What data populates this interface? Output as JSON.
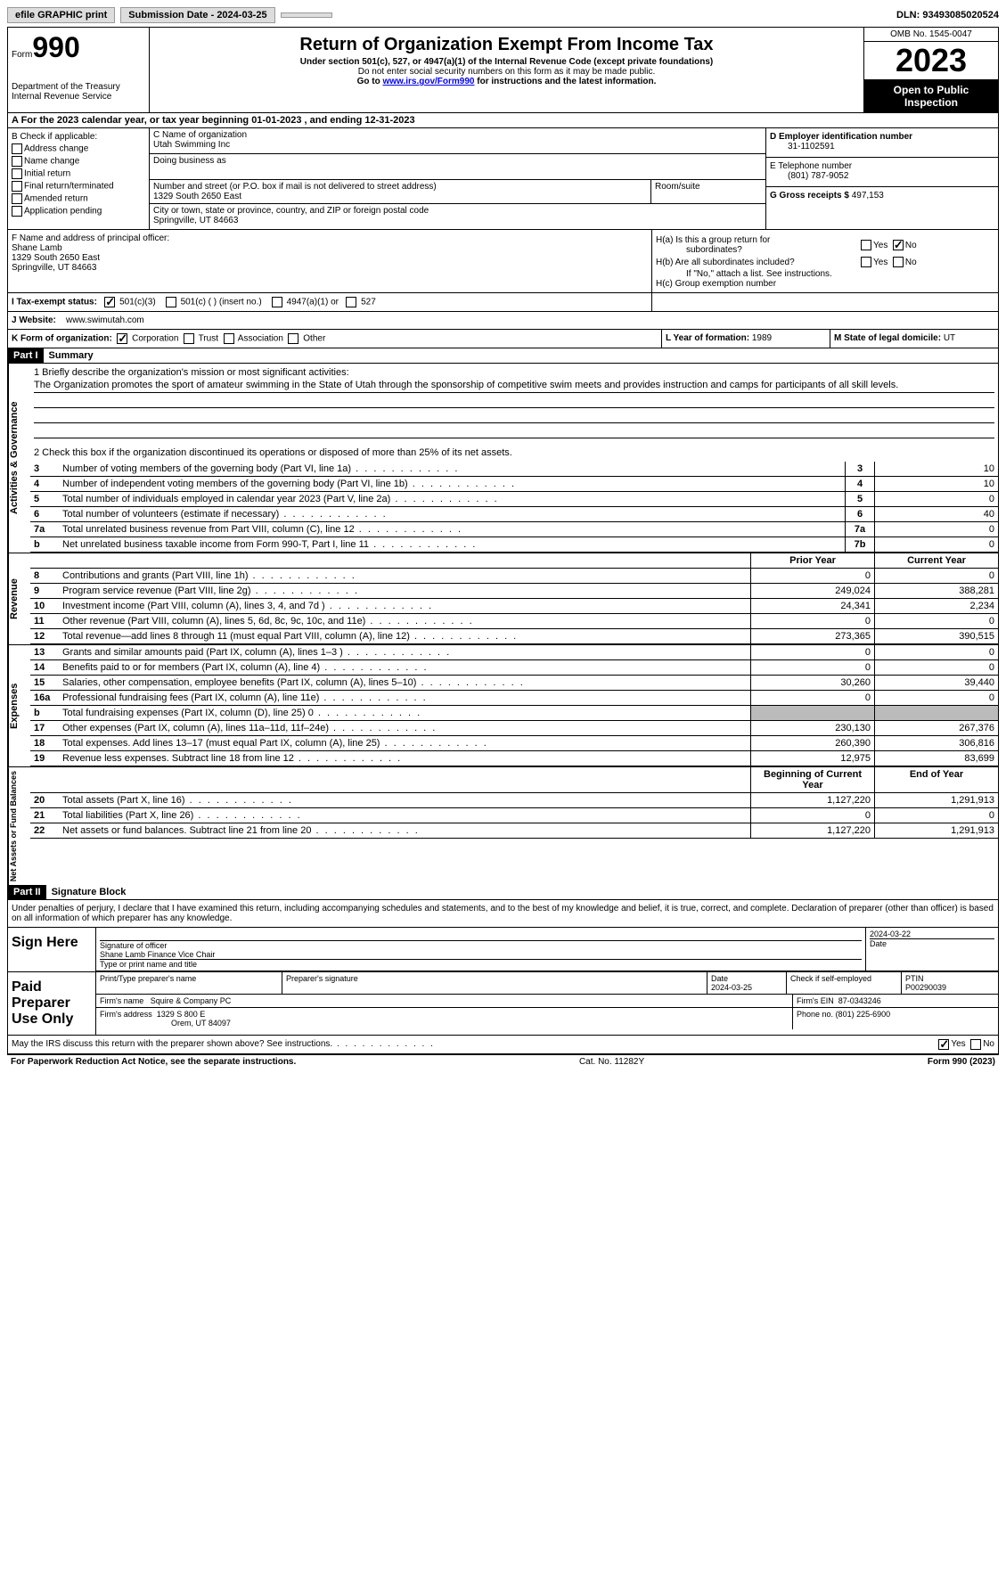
{
  "topbar": {
    "efile": "efile GRAPHIC print",
    "submission": "Submission Date - 2024-03-25",
    "dln": "DLN: 93493085020524"
  },
  "header": {
    "form_label": "Form",
    "form_num": "990",
    "dept": "Department of the Treasury Internal Revenue Service",
    "title": "Return of Organization Exempt From Income Tax",
    "sub1": "Under section 501(c), 527, or 4947(a)(1) of the Internal Revenue Code (except private foundations)",
    "sub2": "Do not enter social security numbers on this form as it may be made public.",
    "sub3_pre": "Go to ",
    "sub3_link": "www.irs.gov/Form990",
    "sub3_post": " for instructions and the latest information.",
    "omb": "OMB No. 1545-0047",
    "year": "2023",
    "inspect": "Open to Public Inspection"
  },
  "rowA": "A   For the 2023 calendar year, or tax year beginning 01-01-2023    , and ending 12-31-2023",
  "sectionB": {
    "label": "B Check if applicable:",
    "items": [
      "Address change",
      "Name change",
      "Initial return",
      "Final return/terminated",
      "Amended return",
      "Application pending"
    ]
  },
  "sectionC": {
    "name_lbl": "C Name of organization",
    "name": "Utah Swimming Inc",
    "dba_lbl": "Doing business as",
    "dba": "",
    "street_lbl": "Number and street (or P.O. box if mail is not delivered to street address)",
    "street": "1329 South 2650 East",
    "room_lbl": "Room/suite",
    "city_lbl": "City or town, state or province, country, and ZIP or foreign postal code",
    "city": "Springville, UT  84663"
  },
  "sectionD": {
    "ein_lbl": "D Employer identification number",
    "ein": "31-1102591",
    "phone_lbl": "E Telephone number",
    "phone": "(801) 787-9052",
    "gross_lbl": "G Gross receipts $",
    "gross": "497,153"
  },
  "sectionF": {
    "lbl": "F  Name and address of principal officer:",
    "name": "Shane Lamb",
    "street": "1329 South 2650 East",
    "city": "Springville, UT  84663"
  },
  "sectionH": {
    "ha": "H(a)  Is this a group return for",
    "ha2": "subordinates?",
    "hb": "H(b)  Are all subordinates included?",
    "hb_note": "If \"No,\" attach a list. See instructions.",
    "hc": "H(c)  Group exemption number",
    "yes": "Yes",
    "no": "No"
  },
  "rowI": {
    "lbl": "I    Tax-exempt status:",
    "o1": "501(c)(3)",
    "o2": "501(c) (  ) (insert no.)",
    "o3": "4947(a)(1) or",
    "o4": "527"
  },
  "rowJ": {
    "lbl": "J    Website:",
    "val": "www.swimutah.com"
  },
  "rowK": {
    "lbl": "K Form of organization:",
    "o1": "Corporation",
    "o2": "Trust",
    "o3": "Association",
    "o4": "Other"
  },
  "rowL": {
    "lbl": "L Year of formation:",
    "val": "1989"
  },
  "rowM": {
    "lbl": "M State of legal domicile:",
    "val": "UT"
  },
  "part1": {
    "hdr": "Part I",
    "title": "Summary",
    "mission_lbl": "1    Briefly describe the organization's mission or most significant activities:",
    "mission": "The Organization promotes the sport of amateur swimming in the State of Utah through the sponsorship of competitive swim meets and provides instruction and camps for participants of all skill levels.",
    "line2": "2    Check this box        if the organization discontinued its operations or disposed of more than 25% of its net assets.",
    "vtab_ag": "Activities & Governance",
    "vtab_rev": "Revenue",
    "vtab_exp": "Expenses",
    "vtab_na": "Net Assets or Fund Balances",
    "prior_hdr": "Prior Year",
    "current_hdr": "Current Year",
    "begin_hdr": "Beginning of Current Year",
    "end_hdr": "End of Year",
    "lines_ag": [
      {
        "n": "3",
        "d": "Number of voting members of the governing body (Part VI, line 1a)",
        "box": "3",
        "v": "10"
      },
      {
        "n": "4",
        "d": "Number of independent voting members of the governing body (Part VI, line 1b)",
        "box": "4",
        "v": "10"
      },
      {
        "n": "5",
        "d": "Total number of individuals employed in calendar year 2023 (Part V, line 2a)",
        "box": "5",
        "v": "0"
      },
      {
        "n": "6",
        "d": "Total number of volunteers (estimate if necessary)",
        "box": "6",
        "v": "40"
      },
      {
        "n": "7a",
        "d": "Total unrelated business revenue from Part VIII, column (C), line 12",
        "box": "7a",
        "v": "0"
      },
      {
        "n": "b",
        "d": "Net unrelated business taxable income from Form 990-T, Part I, line 11",
        "box": "7b",
        "v": "0"
      }
    ],
    "lines_rev": [
      {
        "n": "8",
        "d": "Contributions and grants (Part VIII, line 1h)",
        "p": "0",
        "c": "0"
      },
      {
        "n": "9",
        "d": "Program service revenue (Part VIII, line 2g)",
        "p": "249,024",
        "c": "388,281"
      },
      {
        "n": "10",
        "d": "Investment income (Part VIII, column (A), lines 3, 4, and 7d )",
        "p": "24,341",
        "c": "2,234"
      },
      {
        "n": "11",
        "d": "Other revenue (Part VIII, column (A), lines 5, 6d, 8c, 9c, 10c, and 11e)",
        "p": "0",
        "c": "0"
      },
      {
        "n": "12",
        "d": "Total revenue—add lines 8 through 11 (must equal Part VIII, column (A), line 12)",
        "p": "273,365",
        "c": "390,515"
      }
    ],
    "lines_exp": [
      {
        "n": "13",
        "d": "Grants and similar amounts paid (Part IX, column (A), lines 1–3 )",
        "p": "0",
        "c": "0"
      },
      {
        "n": "14",
        "d": "Benefits paid to or for members (Part IX, column (A), line 4)",
        "p": "0",
        "c": "0"
      },
      {
        "n": "15",
        "d": "Salaries, other compensation, employee benefits (Part IX, column (A), lines 5–10)",
        "p": "30,260",
        "c": "39,440"
      },
      {
        "n": "16a",
        "d": "Professional fundraising fees (Part IX, column (A), line 11e)",
        "p": "0",
        "c": "0"
      },
      {
        "n": "b",
        "d": "Total fundraising expenses (Part IX, column (D), line 25) 0",
        "p": "grey",
        "c": "grey"
      },
      {
        "n": "17",
        "d": "Other expenses (Part IX, column (A), lines 11a–11d, 11f–24e)",
        "p": "230,130",
        "c": "267,376"
      },
      {
        "n": "18",
        "d": "Total expenses. Add lines 13–17 (must equal Part IX, column (A), line 25)",
        "p": "260,390",
        "c": "306,816"
      },
      {
        "n": "19",
        "d": "Revenue less expenses. Subtract line 18 from line 12",
        "p": "12,975",
        "c": "83,699"
      }
    ],
    "lines_na": [
      {
        "n": "20",
        "d": "Total assets (Part X, line 16)",
        "p": "1,127,220",
        "c": "1,291,913"
      },
      {
        "n": "21",
        "d": "Total liabilities (Part X, line 26)",
        "p": "0",
        "c": "0"
      },
      {
        "n": "22",
        "d": "Net assets or fund balances. Subtract line 21 from line 20",
        "p": "1,127,220",
        "c": "1,291,913"
      }
    ]
  },
  "part2": {
    "hdr": "Part II",
    "title": "Signature Block",
    "decl": "Under penalties of perjury, I declare that I have examined this return, including accompanying schedules and statements, and to the best of my knowledge and belief, it is true, correct, and complete. Declaration of preparer (other than officer) is based on all information of which preparer has any knowledge.",
    "sign_here": "Sign Here",
    "sig_officer": "Signature of officer",
    "officer_name": "Shane Lamb  Finance Vice Chair",
    "type_name": "Type or print name and title",
    "date1": "2024-03-22",
    "date_lbl": "Date",
    "paid_prep": "Paid Preparer Use Only",
    "prep_name_lbl": "Print/Type preparer's name",
    "prep_sig_lbl": "Preparer's signature",
    "prep_date": "2024-03-25",
    "check_self": "Check          if self-employed",
    "ptin_lbl": "PTIN",
    "ptin": "P00290039",
    "firm_name_lbl": "Firm's name",
    "firm_name": "Squire & Company PC",
    "firm_ein_lbl": "Firm's EIN",
    "firm_ein": "87-0343246",
    "firm_addr_lbl": "Firm's address",
    "firm_addr": "1329 S 800 E",
    "firm_city": "Orem, UT  84097",
    "phone_lbl": "Phone no.",
    "phone": "(801) 225-6900",
    "discuss": "May the IRS discuss this return with the preparer shown above? See instructions."
  },
  "footer": {
    "l": "For Paperwork Reduction Act Notice, see the separate instructions.",
    "c": "Cat. No. 11282Y",
    "r": "Form 990 (2023)"
  }
}
